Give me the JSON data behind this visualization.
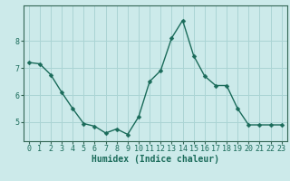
{
  "x": [
    0,
    1,
    2,
    3,
    4,
    5,
    6,
    7,
    8,
    9,
    10,
    11,
    12,
    13,
    14,
    15,
    16,
    17,
    18,
    19,
    20,
    21,
    22,
    23
  ],
  "y": [
    7.2,
    7.15,
    6.75,
    6.1,
    5.5,
    4.95,
    4.85,
    4.6,
    4.75,
    4.55,
    5.2,
    6.5,
    6.9,
    8.1,
    8.75,
    7.45,
    6.7,
    6.35,
    6.35,
    5.5,
    4.9,
    4.9,
    4.9,
    4.9
  ],
  "line_color": "#1a6b5a",
  "marker": "D",
  "marker_size": 2.5,
  "line_width": 1.0,
  "bg_color": "#cceaea",
  "grid_color": "#aad4d4",
  "axis_color": "#336655",
  "xlabel": "Humidex (Indice chaleur)",
  "xlabel_fontsize": 7,
  "tick_fontsize": 6,
  "yticks": [
    5,
    6,
    7,
    8
  ],
  "ylim": [
    4.3,
    9.3
  ],
  "xlim": [
    -0.5,
    23.5
  ],
  "xtick_labels": [
    "0",
    "1",
    "2",
    "3",
    "4",
    "5",
    "6",
    "7",
    "8",
    "9",
    "10",
    "11",
    "12",
    "13",
    "14",
    "15",
    "16",
    "17",
    "18",
    "19",
    "20",
    "21",
    "22",
    "23"
  ]
}
